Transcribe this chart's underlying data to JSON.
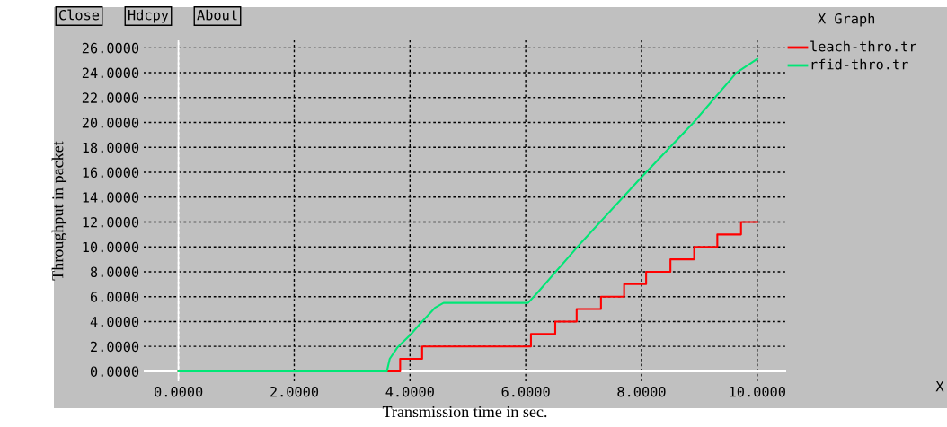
{
  "chart_data": {
    "type": "step",
    "title": "X Graph",
    "xlabel": "Transmission time in sec.",
    "ylabel": "Throughput in packet",
    "annotations": [
      "Close",
      "Hdcpy",
      "About",
      "X"
    ],
    "series": [
      {
        "name": "leach-thro.tr",
        "color": "#ff0000",
        "x": [
          0,
          3.62,
          3.83,
          4.21,
          6.09,
          6.51,
          6.88,
          7.3,
          7.7,
          8.08,
          8.5,
          8.91,
          9.31,
          9.72,
          10
        ],
        "values": [
          0,
          0,
          1,
          2,
          3,
          4,
          5,
          6,
          7,
          8,
          9,
          10,
          11,
          12,
          12
        ]
      },
      {
        "name": "rfid-thro.tr",
        "color": "#00e676",
        "type": "line",
        "x": [
          0,
          3.6,
          3.65,
          3.78,
          4.01,
          4.17,
          4.43,
          4.58,
          6.04,
          6.2,
          6.97,
          8,
          8.9,
          9.64,
          10
        ],
        "values": [
          0,
          0,
          1,
          1.9,
          2.95,
          3.8,
          5.1,
          5.5,
          5.5,
          6.3,
          10.4,
          15.6,
          20,
          24,
          25.1
        ]
      }
    ],
    "xlim": [
      -0.6,
      10.5
    ],
    "ylim": [
      -0.8,
      26.6
    ],
    "xticks": [
      {
        "value": 0,
        "label": "0.0000"
      },
      {
        "value": 2,
        "label": "2.0000"
      },
      {
        "value": 4,
        "label": "4.0000"
      },
      {
        "value": 6,
        "label": "6.0000"
      },
      {
        "value": 8,
        "label": "8.0000"
      },
      {
        "value": 10,
        "label": "10.0000"
      }
    ],
    "yticks": [
      {
        "value": 0,
        "label": "0.0000"
      },
      {
        "value": 2,
        "label": "2.0000"
      },
      {
        "value": 4,
        "label": "4.0000"
      },
      {
        "value": 6,
        "label": "6.0000"
      },
      {
        "value": 8,
        "label": "8.0000"
      },
      {
        "value": 10,
        "label": "10.0000"
      },
      {
        "value": 12,
        "label": "12.0000"
      },
      {
        "value": 14,
        "label": "14.0000"
      },
      {
        "value": 16,
        "label": "16.0000"
      },
      {
        "value": 18,
        "label": "18.0000"
      },
      {
        "value": 20,
        "label": "20.0000"
      },
      {
        "value": 22,
        "label": "22.0000"
      },
      {
        "value": 24,
        "label": "24.0000"
      },
      {
        "value": 26,
        "label": "26.0000"
      }
    ],
    "grid": true,
    "legend": "top right",
    "line_style": "solid",
    "marker": "none"
  }
}
